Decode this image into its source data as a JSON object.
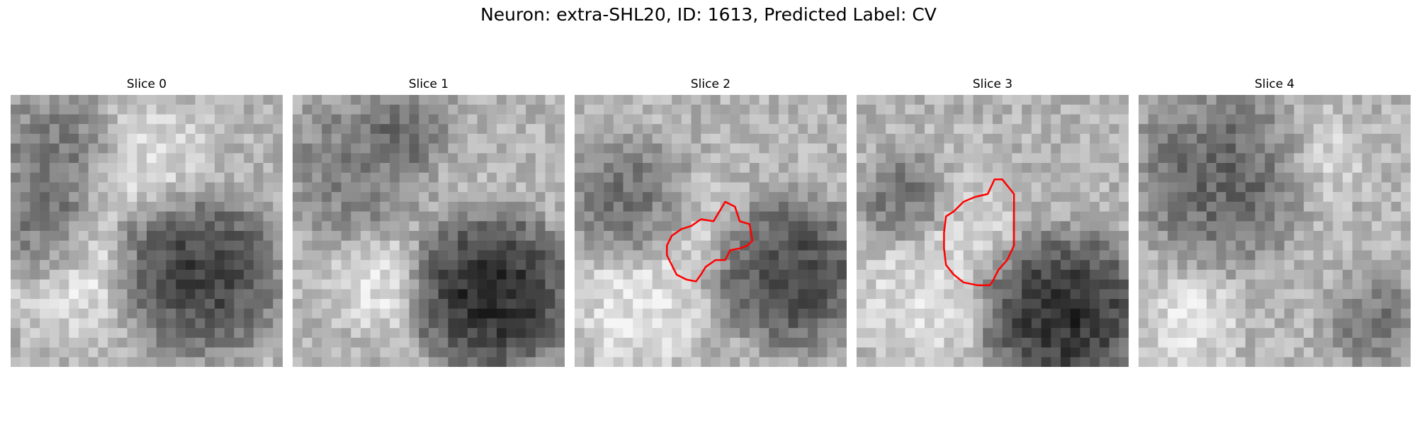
{
  "figure": {
    "title": "Neuron: extra-SHL20, ID: 1613, Predicted Label: CV"
  },
  "panels": [
    {
      "title": "Slice 0",
      "has_contour": false
    },
    {
      "title": "Slice 1",
      "has_contour": false
    },
    {
      "title": "Slice 2",
      "has_contour": true
    },
    {
      "title": "Slice 3",
      "has_contour": true
    },
    {
      "title": "Slice 4",
      "has_contour": false
    }
  ],
  "colors": {
    "contour": "#ff0000",
    "background": "#ffffff"
  },
  "image": {
    "type": "grayscale microscopy slices",
    "grid": "28x28"
  }
}
